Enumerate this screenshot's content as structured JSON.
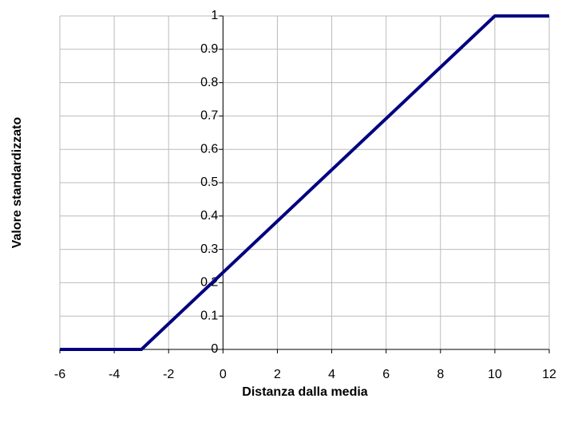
{
  "chart_data": {
    "type": "line",
    "xlabel": "Distanza dalla media",
    "ylabel": "Valore standardizzato",
    "x": [
      -6,
      -3,
      10,
      12
    ],
    "series": [
      {
        "name": null,
        "color": "#000080",
        "values": [
          0,
          0,
          1,
          1
        ]
      }
    ],
    "xlim": [
      -6,
      12
    ],
    "xticks": [
      -6,
      -4,
      -2,
      0,
      2,
      4,
      6,
      8,
      10,
      12
    ],
    "ylim": [
      0,
      1
    ],
    "yticks": [
      0,
      0.1,
      0.2,
      0.3,
      0.4,
      0.5,
      0.6,
      0.7,
      0.8,
      0.9,
      1
    ],
    "grid": true
  }
}
